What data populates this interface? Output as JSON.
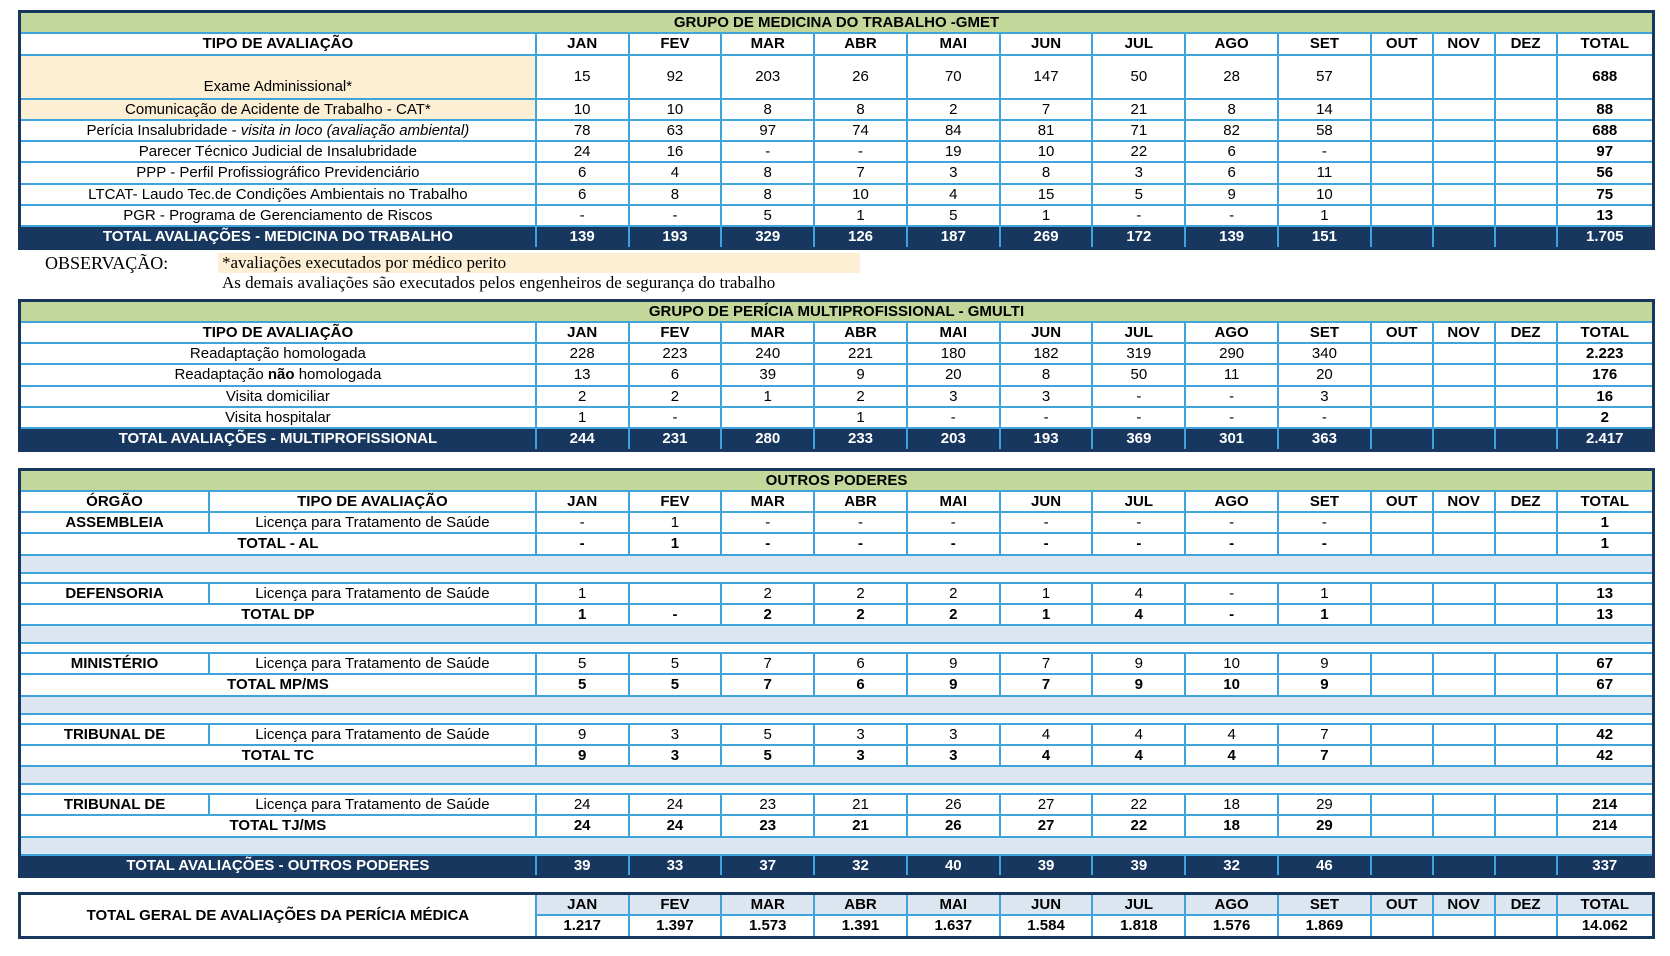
{
  "page": {
    "months": [
      "JAN",
      "FEV",
      "MAR",
      "ABR",
      "MAI",
      "JUN",
      "JUL",
      "AGO",
      "SET",
      "OUT",
      "NOV",
      "DEZ"
    ],
    "total_label": "TOTAL",
    "tipo_header": "TIPO DE AVALIAÇÃO",
    "orgao_header": "ÓRGÃO"
  },
  "colors": {
    "title_bg": "#C4D79B",
    "total_bar_bg": "#17375E",
    "total_bar_text": "#FFFFFF",
    "grid_border": "#3FA3DC",
    "outer_border": "#17375E",
    "spacer_blue": "#DCE6F1",
    "cream_bg": "#FCEFD4"
  },
  "gmet": {
    "title": "GRUPO DE MEDICINA DO TRABALHO -GMET",
    "rows": [
      {
        "label": "Exame Adminissional*",
        "cream": true,
        "tall": true,
        "values": [
          "15",
          "92",
          "203",
          "26",
          "70",
          "147",
          "50",
          "28",
          "57",
          "",
          "",
          ""
        ],
        "total": "688"
      },
      {
        "label": "Comunicação de Acidente de Trabalho - CAT*",
        "cream": true,
        "values": [
          "10",
          "10",
          "8",
          "8",
          "2",
          "7",
          "21",
          "8",
          "14",
          "",
          "",
          ""
        ],
        "total": "88"
      },
      {
        "parts": [
          {
            "t": "Perícia Insalubridade - "
          },
          {
            "t": "visita in loco (avaliação ambiental)",
            "i": true
          }
        ],
        "values": [
          "78",
          "63",
          "97",
          "74",
          "84",
          "81",
          "71",
          "82",
          "58",
          "",
          "",
          ""
        ],
        "total": "688"
      },
      {
        "label": "Parecer Técnico Judicial de Insalubridade",
        "values": [
          "24",
          "16",
          "-",
          "-",
          "19",
          "10",
          "22",
          "6",
          "-",
          "",
          "",
          ""
        ],
        "total": "97"
      },
      {
        "label": "PPP - Perfil Profissiográfico Previdenciário",
        "values": [
          "6",
          "4",
          "8",
          "7",
          "3",
          "8",
          "3",
          "6",
          "11",
          "",
          "",
          ""
        ],
        "total": "56"
      },
      {
        "label": "LTCAT- Laudo Tec.de Condições Ambientais no Trabalho",
        "values": [
          "6",
          "8",
          "8",
          "10",
          "4",
          "15",
          "5",
          "9",
          "10",
          "",
          "",
          ""
        ],
        "total": "75"
      },
      {
        "label": "PGR - Programa de Gerenciamento de Riscos",
        "values": [
          "-",
          "-",
          "5",
          "1",
          "5",
          "1",
          "-",
          "-",
          "1",
          "",
          "",
          ""
        ],
        "total": "13"
      }
    ],
    "total_row": {
      "label": "TOTAL AVALIAÇÕES - MEDICINA DO TRABALHO",
      "align": "center",
      "values": [
        "139",
        "193",
        "329",
        "126",
        "187",
        "269",
        "172",
        "139",
        "151",
        "",
        "",
        ""
      ],
      "total": "1.705"
    }
  },
  "observation": {
    "label": "OBSERVAÇÃO:",
    "line1": "*avaliações executados por médico perito",
    "line2": "As demais avaliações são executados pelos engenheiros de segurança do trabalho"
  },
  "gmulti": {
    "title": "GRUPO DE PERÍCIA MULTIPROFISSIONAL - GMULTI",
    "rows": [
      {
        "label": "Readaptação homologada",
        "values": [
          "228",
          "223",
          "240",
          "221",
          "180",
          "182",
          "319",
          "290",
          "340",
          "",
          "",
          ""
        ],
        "total": "2.223"
      },
      {
        "parts": [
          {
            "t": "Readaptação "
          },
          {
            "t": "não",
            "b": true
          },
          {
            "t": " homologada"
          }
        ],
        "values": [
          "13",
          "6",
          "39",
          "9",
          "20",
          "8",
          "50",
          "11",
          "20",
          "",
          "",
          ""
        ],
        "total": "176"
      },
      {
        "label": "Visita domiciliar",
        "values": [
          "2",
          "2",
          "1",
          "2",
          "3",
          "3",
          "-",
          "-",
          "3",
          "",
          "",
          ""
        ],
        "total": "16"
      },
      {
        "label": "Visita hospitalar",
        "values": [
          "1",
          "-",
          "",
          "1",
          "-",
          "-",
          "-",
          "-",
          "-",
          "",
          "",
          ""
        ],
        "total": "2"
      }
    ],
    "total_row": {
      "label": "TOTAL AVALIAÇÕES - MULTIPROFISSIONAL",
      "align": "left",
      "values": [
        "244",
        "231",
        "280",
        "233",
        "203",
        "193",
        "369",
        "301",
        "363",
        "",
        "",
        ""
      ],
      "total": "2.417"
    }
  },
  "outros": {
    "title": "OUTROS PODERES",
    "sections": [
      {
        "orgao": "ASSEMBLEIA",
        "tipo": "Licença para Tratamento de Saúde",
        "tipo_align": "left",
        "values": [
          "-",
          "1",
          "-",
          "-",
          "-",
          "-",
          "-",
          "-",
          "-",
          "",
          "",
          ""
        ],
        "total": "1",
        "total_row": {
          "label": "TOTAL -  AL",
          "values": [
            "-",
            "1",
            "-",
            "-",
            "-",
            "-",
            "-",
            "-",
            "-",
            "",
            "",
            ""
          ],
          "total": "1"
        }
      },
      {
        "orgao": "DEFENSORIA",
        "tipo": "Licença para Tratamento de Saúde",
        "tipo_align": "left",
        "values": [
          "1",
          "",
          "2",
          "2",
          "2",
          "1",
          "4",
          "-",
          "1",
          "",
          "",
          ""
        ],
        "total": "13",
        "total_row": {
          "label": "TOTAL DP",
          "values": [
            "1",
            "-",
            "2",
            "2",
            "2",
            "1",
            "4",
            "-",
            "1",
            "",
            "",
            ""
          ],
          "total": "13"
        }
      },
      {
        "orgao": "MINISTÉRIO",
        "tipo": "Licença para Tratamento de Saúde",
        "tipo_align": "left",
        "values": [
          "5",
          "5",
          "7",
          "6",
          "9",
          "7",
          "9",
          "10",
          "9",
          "",
          "",
          ""
        ],
        "total": "67",
        "total_row": {
          "label": "TOTAL MP/MS",
          "values": [
            "5",
            "5",
            "7",
            "6",
            "9",
            "7",
            "9",
            "10",
            "9",
            "",
            "",
            ""
          ],
          "total": "67"
        }
      },
      {
        "orgao": "TRIBUNAL DE",
        "tipo": "Licença para Tratamento de Saúde",
        "tipo_align": "center",
        "values": [
          "9",
          "3",
          "5",
          "3",
          "3",
          "4",
          "4",
          "4",
          "7",
          "",
          "",
          ""
        ],
        "total": "42",
        "total_row": {
          "label": "TOTAL TC",
          "values": [
            "9",
            "3",
            "5",
            "3",
            "3",
            "4",
            "4",
            "4",
            "7",
            "",
            "",
            ""
          ],
          "total": "42"
        }
      },
      {
        "orgao": "TRIBUNAL DE",
        "tipo": "Licença para Tratamento de Saúde",
        "tipo_align": "left",
        "values": [
          "24",
          "24",
          "23",
          "21",
          "26",
          "27",
          "22",
          "18",
          "29",
          "",
          "",
          ""
        ],
        "total": "214",
        "total_row": {
          "label": "TOTAL TJ/MS",
          "values": [
            "24",
            "24",
            "23",
            "21",
            "26",
            "27",
            "22",
            "18",
            "29",
            "",
            "",
            ""
          ],
          "total": "214"
        }
      }
    ],
    "grand_total": {
      "label": "TOTAL AVALIAÇÕES - OUTROS PODERES",
      "values": [
        "39",
        "33",
        "37",
        "32",
        "40",
        "39",
        "39",
        "32",
        "46",
        "",
        "",
        ""
      ],
      "total": "337"
    }
  },
  "geral": {
    "label": "TOTAL GERAL DE AVALIAÇÕES DA PERÍCIA MÉDICA",
    "values": [
      "1.217",
      "1.397",
      "1.573",
      "1.391",
      "1.637",
      "1.584",
      "1.818",
      "1.576",
      "1.869",
      "",
      "",
      ""
    ],
    "total": "14.062"
  }
}
